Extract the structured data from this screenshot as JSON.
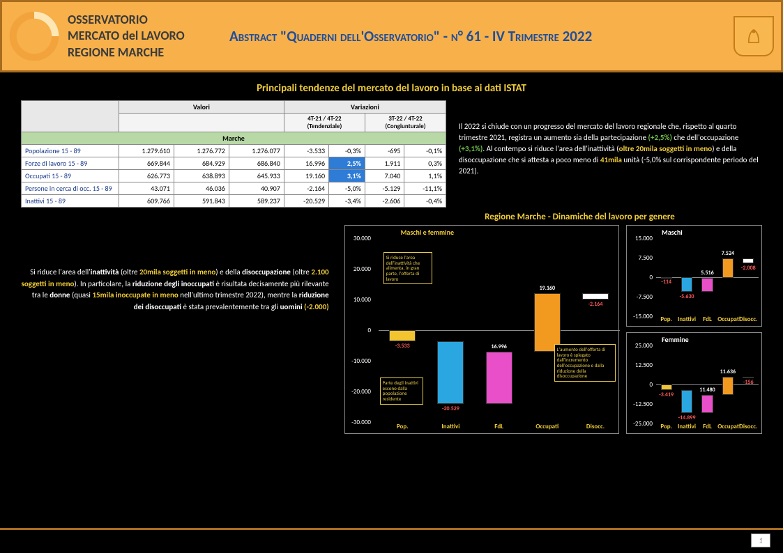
{
  "header": {
    "org_line1": "OSSERVATORIO",
    "org_line2": "MERCATO del LAVORO",
    "org_line3": "REGIONE MARCHE",
    "title": "Abstract \"Quaderni dell'Osservatorio\" - n° 61 - IV Trimestre 2022",
    "logo_color": "#f2a33c",
    "border_color": "#a86c1e",
    "title_color": "#1f4e9c"
  },
  "section_title": "Principali tendenze del mercato del lavoro in base ai dati ISTAT",
  "table": {
    "valori_header": "Valori",
    "variazioni_header": "Variazioni",
    "col_4t21_4t22": "4T-21 / 4T-22",
    "col_4t21_4t22_sub": "(Tendenziale)",
    "col_3t22_4t22": "3T-22 / 4T-22",
    "col_3t22_4t22_sub": "(Congiunturale)",
    "region": "Marche",
    "rows": [
      {
        "label": "Popolazione 15 - 89",
        "v1": "1.279.610",
        "v2": "1.276.772",
        "v3": "1.276.077",
        "d1": "-3.533",
        "p1": "-0,3%",
        "d2": "-695",
        "p2": "-0,1%"
      },
      {
        "label": "Forze di lavoro 15 - 89",
        "v1": "669.844",
        "v2": "684.929",
        "v3": "686.840",
        "d1": "16.996",
        "p1": "2,5%",
        "d2": "1.911",
        "p2": "0,3%",
        "hl": true
      },
      {
        "label": "Occupati 15 - 89",
        "v1": "626.773",
        "v2": "638.893",
        "v3": "645.933",
        "d1": "19.160",
        "p1": "3,1%",
        "d2": "7.040",
        "p2": "1,1%",
        "hl": true
      },
      {
        "label": "Persone in cerca di occ. 15 - 89",
        "v1": "43.071",
        "v2": "46.036",
        "v3": "40.907",
        "d1": "-2.164",
        "p1": "-5,0%",
        "d2": "-5.129",
        "p2": "-11,1%"
      },
      {
        "label": "Inattivi 15 - 89",
        "v1": "609.766",
        "v2": "591.843",
        "v3": "589.237",
        "d1": "-20.529",
        "p1": "-3,4%",
        "d2": "-2.606",
        "p2": "-0,4%"
      }
    ]
  },
  "side_text": {
    "pre": "Il 2022 si chiude con un progresso del mercato del lavoro regionale che, rispetto al quarto trimestre 2021, registra un aumento sia della partecipazione ",
    "g1": "(+2,5%)",
    "mid1": " che dell'occupazione ",
    "g2": "(+3,1%)",
    "mid2": ". Al contempo si riduce l'area dell'inattività (",
    "y1": "oltre 20mila soggetti in meno",
    "mid3": ") e della disoccupazione che si attesta a poco meno di ",
    "y2": "41mila",
    "end": " unità (-5,0% sul corrispondente periodo del 2021)."
  },
  "charts_title": "Regione Marche - Dinamiche del lavoro per genere",
  "left_text": {
    "t1": "Si riduce l'area dell'",
    "b1": "inattività",
    "t2": " (oltre ",
    "y1": "20mila soggetti in meno",
    "t3": ") e della ",
    "b2": "disoccupazione",
    "t4": " (oltre ",
    "y2": "2.100 soggetti in meno",
    "t5": "). In particolare, la ",
    "b3": "riduzione degli inoccupati",
    "t6": " è risultata decisamente più rilevante tra le ",
    "b4": "donne",
    "t7": " (quasi ",
    "y3": "15mila inoccupate in meno",
    "t8": " nell'ultimo trimestre 2022), mentre la ",
    "b5": "riduzione dei disoccupati",
    "t9": " è stata prevalentemente tra gli ",
    "b6": "uomini",
    "t10": " ",
    "y4": "(-2.000)"
  },
  "chart_main": {
    "title": "Maschi e femmine",
    "ylim": [
      -30000,
      30000
    ],
    "ytick_step": 10000,
    "categories": [
      "Pop.",
      "Inattivi",
      "FdL",
      "Occupati",
      "Disocc."
    ],
    "values": [
      -3533,
      -20529,
      16996,
      19160,
      -2164
    ],
    "colors": [
      "#f2c430",
      "#2aa7e0",
      "#e84fc8",
      "#f29a1f",
      "#ffffff"
    ],
    "labels": [
      "-3.533",
      "-20.529",
      "16.996",
      "19.160",
      "-2.164"
    ],
    "callout1": "Si riduce l'area dell'inattività che alimenta, in gran parte, l'offerta di lavoro",
    "callout2": "Parte degli inattivi escono dalla popolazione residente",
    "callout3": "L'aumento dell'offerta di lavoro è spiegato dall'incremento dell'occupazione e dalla riduzione della disoccupazione"
  },
  "chart_m": {
    "title": "Maschi",
    "ylim": [
      -15000,
      15000
    ],
    "ytick_step": 7500,
    "categories": [
      "Pop.",
      "Inattivi",
      "FdL",
      "Occupati",
      "Disocc."
    ],
    "values": [
      -114,
      -5630,
      5516,
      7524,
      -2008
    ],
    "labels": [
      "-114",
      "-5.630",
      "5.516",
      "7.524",
      "-2.008"
    ],
    "colors": [
      "#f2c430",
      "#2aa7e0",
      "#e84fc8",
      "#f29a1f",
      "#ffffff"
    ]
  },
  "chart_f": {
    "title": "Femmine",
    "ylim": [
      -25000,
      25000
    ],
    "ytick_step": 12500,
    "categories": [
      "Pop.",
      "Inattivi",
      "FdL",
      "Occupati",
      "Disocc."
    ],
    "values": [
      -3419,
      -14899,
      11480,
      11636,
      -156
    ],
    "labels": [
      "-3.419",
      "-14.899",
      "11.480",
      "11.636",
      "-156"
    ],
    "colors": [
      "#f2c430",
      "#2aa7e0",
      "#e84fc8",
      "#f29a1f",
      "#ffffff"
    ]
  },
  "footer": {
    "page": "1"
  }
}
